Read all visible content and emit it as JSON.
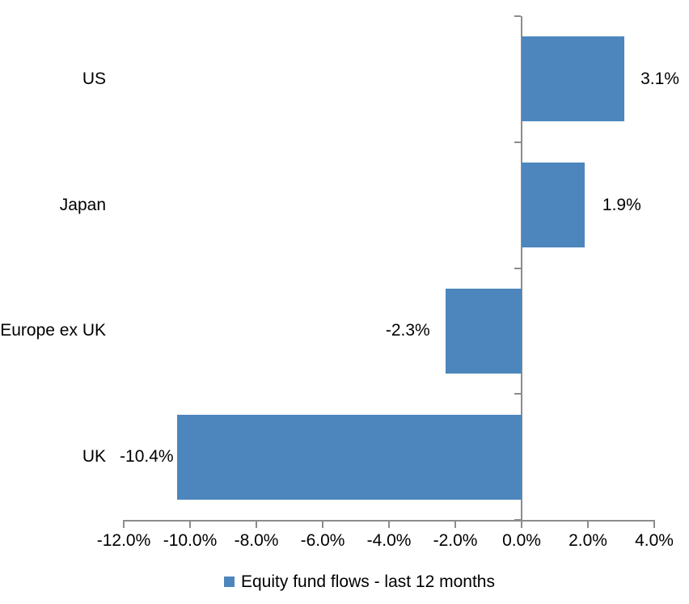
{
  "chart_data": {
    "type": "bar",
    "orientation": "horizontal",
    "title": "",
    "categories": [
      "US",
      "Japan",
      "Europe ex UK",
      "UK"
    ],
    "series": [
      {
        "name": "Equity fund flows - last 12 months",
        "values": [
          3.1,
          1.9,
          -2.3,
          -10.4
        ],
        "value_labels": [
          "3.1%",
          "1.9%",
          "-2.3%",
          "-10.4%"
        ]
      }
    ],
    "x_axis": {
      "min": -12,
      "max": 4,
      "step": 2,
      "tick_labels": [
        "-12.0%",
        "-10.0%",
        "-8.0%",
        "-6.0%",
        "-4.0%",
        "-2.0%",
        "0.0%",
        "2.0%",
        "4.0%"
      ]
    },
    "legend": {
      "position": "bottom",
      "label": "Equity fund flows - last 12 months"
    },
    "grid": false,
    "colors": {
      "bar": "#4D86BD",
      "axis": "#8C8C8C",
      "text": "#000000",
      "background": "#FFFFFF"
    }
  }
}
